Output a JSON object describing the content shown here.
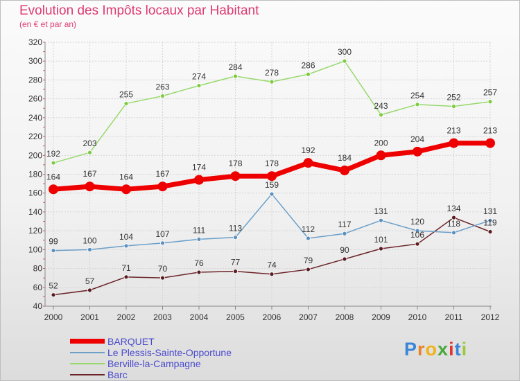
{
  "title": "Evolution des Impôts locaux par Habitant",
  "subtitle": "(en € et par an)",
  "logo": "Proxiti",
  "chart_data": {
    "type": "line",
    "title": "Evolution des Impôts locaux par Habitant",
    "subtitle": "(en € et par an)",
    "x": [
      "2000",
      "2001",
      "2002",
      "2003",
      "2004",
      "2005",
      "2006",
      "2007",
      "2008",
      "2009",
      "2010",
      "2011",
      "2012"
    ],
    "ylim": [
      40,
      320
    ],
    "yticks": [
      40,
      60,
      80,
      100,
      120,
      140,
      160,
      180,
      200,
      220,
      240,
      260,
      280,
      300,
      320
    ],
    "grid": true,
    "legend_position": "bottom-left",
    "series": [
      {
        "name": "BARQUET",
        "color": "#ee0000",
        "values": [
          164,
          167,
          164,
          167,
          174,
          178,
          178,
          192,
          184,
          200,
          204,
          213,
          213
        ]
      },
      {
        "name": "Le Plessis-Sainte-Opportune",
        "color": "#6b9fc8",
        "values": [
          99,
          100,
          104,
          107,
          111,
          113,
          159,
          112,
          117,
          131,
          120,
          118,
          131
        ]
      },
      {
        "name": "Berville-la-Campagne",
        "color": "#96d96a",
        "values": [
          192,
          203,
          255,
          263,
          274,
          284,
          278,
          286,
          300,
          243,
          254,
          252,
          257
        ]
      },
      {
        "name": "Barc",
        "color": "#6b2328",
        "values": [
          52,
          57,
          71,
          70,
          76,
          77,
          74,
          79,
          90,
          101,
          106,
          134,
          119
        ]
      }
    ]
  }
}
